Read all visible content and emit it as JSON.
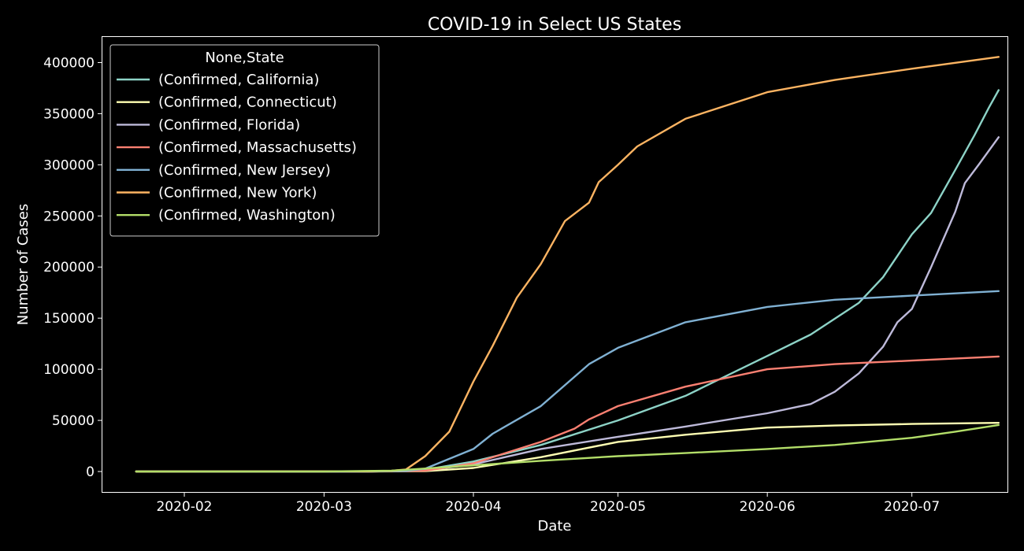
{
  "chart_data": {
    "type": "line",
    "title": "COVID-19 in Select US States",
    "xlabel": "Date",
    "ylabel": "Number of Cases",
    "xlim": [
      "2020-01-15",
      "2020-07-21"
    ],
    "ylim": [
      -20000,
      425000
    ],
    "x_ticks": [
      "2020-02-01",
      "2020-03-01",
      "2020-04-01",
      "2020-05-01",
      "2020-06-01",
      "2020-07-01"
    ],
    "x_tick_labels": [
      "2020-02",
      "2020-03",
      "2020-04",
      "2020-05",
      "2020-06",
      "2020-07"
    ],
    "y_ticks": [
      0,
      50000,
      100000,
      150000,
      200000,
      250000,
      300000,
      350000,
      400000
    ],
    "y_tick_labels": [
      "0",
      "50000",
      "100000",
      "150000",
      "200000",
      "250000",
      "300000",
      "350000",
      "400000"
    ],
    "grid": false,
    "legend": {
      "title": "None,State",
      "placement": "top-left"
    },
    "background": "#000000",
    "series": [
      {
        "name": "(Confirmed, California)",
        "color": "#8dd3c7",
        "points": [
          [
            "2020-01-22",
            0
          ],
          [
            "2020-03-01",
            30
          ],
          [
            "2020-03-15",
            400
          ],
          [
            "2020-03-22",
            1800
          ],
          [
            "2020-04-01",
            9800
          ],
          [
            "2020-04-15",
            26000
          ],
          [
            "2020-05-01",
            50000
          ],
          [
            "2020-05-15",
            74000
          ],
          [
            "2020-06-01",
            113000
          ],
          [
            "2020-06-10",
            134000
          ],
          [
            "2020-06-20",
            165000
          ],
          [
            "2020-06-25",
            190000
          ],
          [
            "2020-07-01",
            232000
          ],
          [
            "2020-07-05",
            253000
          ],
          [
            "2020-07-10",
            295000
          ],
          [
            "2020-07-14",
            329000
          ],
          [
            "2020-07-17",
            356000
          ],
          [
            "2020-07-19",
            373000
          ]
        ]
      },
      {
        "name": "(Confirmed, Connecticut)",
        "color": "#ffffb3",
        "points": [
          [
            "2020-01-22",
            0
          ],
          [
            "2020-03-10",
            0
          ],
          [
            "2020-03-22",
            300
          ],
          [
            "2020-04-01",
            3500
          ],
          [
            "2020-04-15",
            14000
          ],
          [
            "2020-05-01",
            29000
          ],
          [
            "2020-05-15",
            36000
          ],
          [
            "2020-06-01",
            43000
          ],
          [
            "2020-06-15",
            45000
          ],
          [
            "2020-07-01",
            46500
          ],
          [
            "2020-07-19",
            47600
          ]
        ]
      },
      {
        "name": "(Confirmed, Florida)",
        "color": "#bebada",
        "points": [
          [
            "2020-01-22",
            0
          ],
          [
            "2020-03-10",
            20
          ],
          [
            "2020-03-22",
            1000
          ],
          [
            "2020-04-01",
            7000
          ],
          [
            "2020-04-15",
            22000
          ],
          [
            "2020-05-01",
            34000
          ],
          [
            "2020-05-15",
            44000
          ],
          [
            "2020-06-01",
            57000
          ],
          [
            "2020-06-10",
            66000
          ],
          [
            "2020-06-15",
            78000
          ],
          [
            "2020-06-20",
            96000
          ],
          [
            "2020-06-25",
            122000
          ],
          [
            "2020-06-28",
            146000
          ],
          [
            "2020-07-01",
            159000
          ],
          [
            "2020-07-05",
            200000
          ],
          [
            "2020-07-10",
            254000
          ],
          [
            "2020-07-12",
            282000
          ],
          [
            "2020-07-15",
            301000
          ],
          [
            "2020-07-19",
            327000
          ]
        ]
      },
      {
        "name": "(Confirmed, Massachusetts)",
        "color": "#fb8072",
        "points": [
          [
            "2020-01-22",
            0
          ],
          [
            "2020-03-10",
            20
          ],
          [
            "2020-03-22",
            700
          ],
          [
            "2020-04-01",
            8000
          ],
          [
            "2020-04-15",
            29000
          ],
          [
            "2020-04-22",
            42000
          ],
          [
            "2020-04-25",
            51000
          ],
          [
            "2020-05-01",
            64000
          ],
          [
            "2020-05-15",
            83000
          ],
          [
            "2020-06-01",
            100000
          ],
          [
            "2020-06-15",
            105000
          ],
          [
            "2020-07-01",
            108500
          ],
          [
            "2020-07-19",
            112500
          ]
        ]
      },
      {
        "name": "(Confirmed, New Jersey)",
        "color": "#80b1d3",
        "points": [
          [
            "2020-01-22",
            0
          ],
          [
            "2020-03-10",
            20
          ],
          [
            "2020-03-18",
            600
          ],
          [
            "2020-03-22",
            2800
          ],
          [
            "2020-04-01",
            22000
          ],
          [
            "2020-04-05",
            37000
          ],
          [
            "2020-04-15",
            64000
          ],
          [
            "2020-04-25",
            105000
          ],
          [
            "2020-05-01",
            121000
          ],
          [
            "2020-05-15",
            146000
          ],
          [
            "2020-06-01",
            161000
          ],
          [
            "2020-06-15",
            168000
          ],
          [
            "2020-07-01",
            172000
          ],
          [
            "2020-07-19",
            176500
          ]
        ]
      },
      {
        "name": "(Confirmed, New York)",
        "color": "#fdb462",
        "points": [
          [
            "2020-01-22",
            0
          ],
          [
            "2020-03-10",
            170
          ],
          [
            "2020-03-15",
            700
          ],
          [
            "2020-03-18",
            2000
          ],
          [
            "2020-03-22",
            15000
          ],
          [
            "2020-03-27",
            39000
          ],
          [
            "2020-04-01",
            88000
          ],
          [
            "2020-04-05",
            123000
          ],
          [
            "2020-04-10",
            170000
          ],
          [
            "2020-04-15",
            203000
          ],
          [
            "2020-04-20",
            245000
          ],
          [
            "2020-04-25",
            263000
          ],
          [
            "2020-04-27",
            283000
          ],
          [
            "2020-05-01",
            300000
          ],
          [
            "2020-05-05",
            318000
          ],
          [
            "2020-05-15",
            345000
          ],
          [
            "2020-06-01",
            371000
          ],
          [
            "2020-06-15",
            383000
          ],
          [
            "2020-07-01",
            394000
          ],
          [
            "2020-07-19",
            405500
          ]
        ]
      },
      {
        "name": "(Confirmed, Washington)",
        "color": "#b3de69",
        "points": [
          [
            "2020-01-22",
            1
          ],
          [
            "2020-03-01",
            30
          ],
          [
            "2020-03-15",
            800
          ],
          [
            "2020-04-01",
            6000
          ],
          [
            "2020-04-15",
            10500
          ],
          [
            "2020-05-01",
            15000
          ],
          [
            "2020-05-15",
            18000
          ],
          [
            "2020-06-01",
            22000
          ],
          [
            "2020-06-15",
            26000
          ],
          [
            "2020-07-01",
            33000
          ],
          [
            "2020-07-10",
            39000
          ],
          [
            "2020-07-19",
            45500
          ]
        ]
      }
    ]
  }
}
